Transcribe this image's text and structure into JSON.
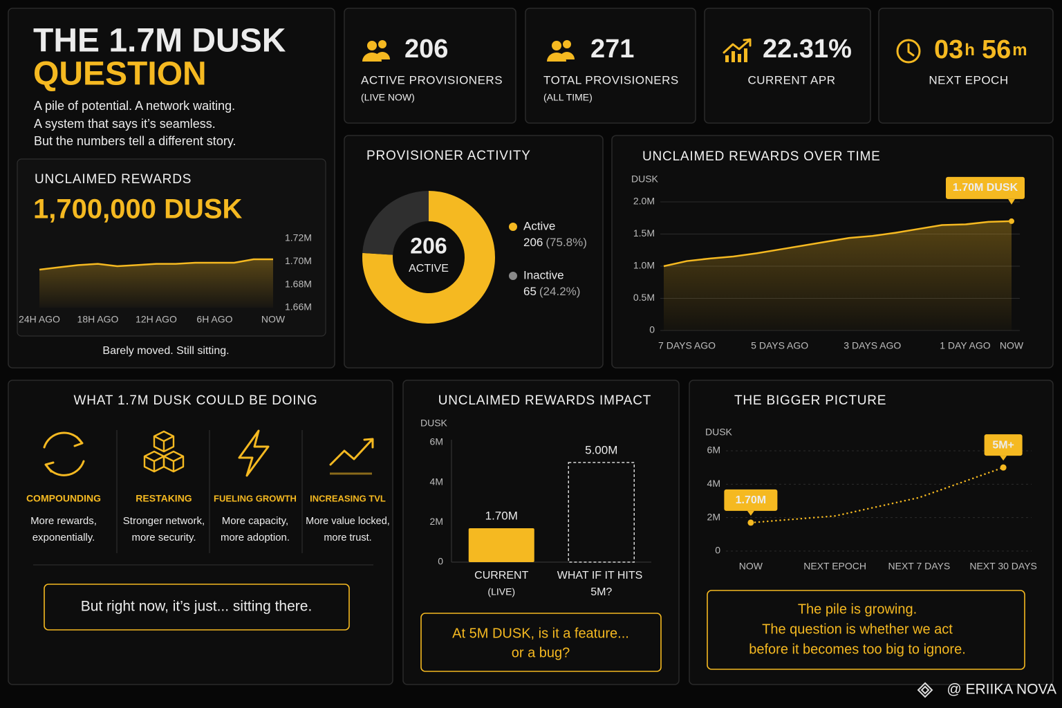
{
  "header": {
    "title": "THE 1.7M DUSK",
    "title_highlight": "QUESTION",
    "intro": [
      "A pile of potential. A network waiting.",
      "A system that says it’s seamless.",
      "But the numbers tell a different story."
    ]
  },
  "stats": [
    {
      "value": 206,
      "label": "ACTIVE PROVISIONERS",
      "note": "(LIVE NOW)"
    },
    {
      "value": 271,
      "label": "TOTAL PROVISIONERS",
      "note": "(ALL TIME)"
    },
    {
      "value": "22.31%",
      "label": "CURRENT APR"
    },
    {
      "hours": "03",
      "hours_unit": "h",
      "minutes": "56",
      "minutes_unit": "m",
      "label": "NEXT EPOCH"
    }
  ],
  "chart_data": [
    {
      "type": "area",
      "title": "UNCLAIMED REWARDS",
      "headline": "1,700,000 DUSK",
      "x": [
        -24,
        -22,
        -20,
        -18,
        -16,
        -14,
        -12,
        -10,
        -8,
        -6,
        -4,
        -2,
        0
      ],
      "values": [
        1693000,
        1695000,
        1697000,
        1698000,
        1696000,
        1697000,
        1698000,
        1698000,
        1699000,
        1699000,
        1699000,
        1702000,
        1702000
      ],
      "xlim": [
        -24,
        0
      ],
      "xticks": [
        {
          "value": -24,
          "label": "24H AGO"
        },
        {
          "value": -18,
          "label": "18H AGO"
        },
        {
          "value": -12,
          "label": "12H AGO"
        },
        {
          "value": -6,
          "label": "6H AGO"
        },
        {
          "value": 0,
          "label": "NOW"
        }
      ],
      "ylim": [
        1660000,
        1720000
      ],
      "yticks": [
        {
          "value": 1660000,
          "label": "1.66M"
        },
        {
          "value": 1680000,
          "label": "1.68M"
        },
        {
          "value": 1700000,
          "label": "1.70M"
        },
        {
          "value": 1720000,
          "label": "1.72M"
        }
      ],
      "grid": false,
      "color": "#f5b921",
      "caption": "Barely moved. Still sitting."
    },
    {
      "type": "donut",
      "title": "PROVISIONER ACTIVITY",
      "categories": [
        "Active",
        "Inactive"
      ],
      "values": [
        206,
        65
      ],
      "share_labels": [
        "(75.8%)",
        "(24.2%)"
      ],
      "colors": [
        "#f5b921",
        "#2f2f2f"
      ],
      "center_label": "ACTIVE"
    },
    {
      "type": "area",
      "title": "UNCLAIMED REWARDS OVER TIME",
      "y_label": "DUSK",
      "x": [
        -7.5,
        -7,
        -6.5,
        -6,
        -5.5,
        -5,
        -4.5,
        -4,
        -3.5,
        -3,
        -2.5,
        -2,
        -1.5,
        -1,
        -0.5,
        0
      ],
      "values": [
        1000000,
        1080000,
        1120000,
        1150000,
        1200000,
        1260000,
        1320000,
        1380000,
        1440000,
        1470000,
        1520000,
        1580000,
        1640000,
        1650000,
        1690000,
        1700000
      ],
      "xlim": [
        -7.5,
        0
      ],
      "xticks": [
        {
          "value": -7,
          "label": "7 DAYS AGO"
        },
        {
          "value": -5,
          "label": "5 DAYS AGO"
        },
        {
          "value": -3,
          "label": "3 DAYS AGO"
        },
        {
          "value": -1,
          "label": "1 DAY AGO"
        },
        {
          "value": 0,
          "label": "NOW"
        }
      ],
      "ylim": [
        0,
        2000000
      ],
      "yticks": [
        0,
        {
          "value": 500000,
          "label": "0.5M"
        },
        {
          "value": 1000000,
          "label": "1.0M"
        },
        {
          "value": 1500000,
          "label": "1.5M"
        },
        {
          "value": 2000000,
          "label": "2.0M"
        }
      ],
      "grid": true,
      "color": "#f5b921",
      "annotation": "1.70M DUSK"
    },
    {
      "type": "bar",
      "title": "UNCLAIMED REWARDS IMPACT",
      "y_label": "DUSK",
      "categories": [
        "CURRENT",
        "WHAT IF IT HITS 5M?"
      ],
      "category_note": "(LIVE)",
      "values": [
        1700000,
        5000000
      ],
      "value_labels": [
        "1.70M",
        "5.00M"
      ],
      "styles": [
        "solid",
        "dashed"
      ],
      "ylim": [
        0,
        6000000
      ],
      "yticks": [
        0,
        {
          "value": 2000000,
          "label": "2M"
        },
        {
          "value": 4000000,
          "label": "4M"
        },
        {
          "value": 6000000,
          "label": "6M"
        }
      ],
      "grid": false,
      "color": "#f5b921",
      "callout": [
        "At 5M DUSK, is it a feature...",
        "or a bug?"
      ]
    },
    {
      "type": "line",
      "title": "THE BIGGER PICTURE",
      "y_label": "DUSK",
      "categories": [
        "NOW",
        "NEXT EPOCH",
        "NEXT 7 DAYS",
        "NEXT 30 DAYS"
      ],
      "values": [
        1700000,
        2100000,
        3200000,
        5000000
      ],
      "value_labels": [
        "1.70M",
        null,
        null,
        "5M+"
      ],
      "line_style": "dotted",
      "ylim": [
        0,
        6000000
      ],
      "yticks": [
        0,
        {
          "value": 2000000,
          "label": "2M"
        },
        {
          "value": 4000000,
          "label": "4M"
        },
        {
          "value": 6000000,
          "label": "6M"
        }
      ],
      "grid": true,
      "color": "#f5b921",
      "callout": [
        "The pile is growing.",
        "The question is whether we act",
        "before it becomes too big to ignore."
      ]
    }
  ],
  "uses": {
    "title": "WHAT 1.7M DUSK COULD BE DOING",
    "items": [
      {
        "title": "COMPOUNDING",
        "lines": [
          "More rewards,",
          "exponentially."
        ]
      },
      {
        "title": "RESTAKING",
        "lines": [
          "Stronger network,",
          "more security."
        ]
      },
      {
        "title": "FUELING GROWTH",
        "lines": [
          "More capacity,",
          "more adoption."
        ]
      },
      {
        "title": "INCREASING TVL",
        "lines": [
          "More value locked,",
          "more trust."
        ]
      }
    ],
    "callout": "But right now, it’s just... sitting there."
  },
  "credit": "@ ERIIKA NOVA"
}
